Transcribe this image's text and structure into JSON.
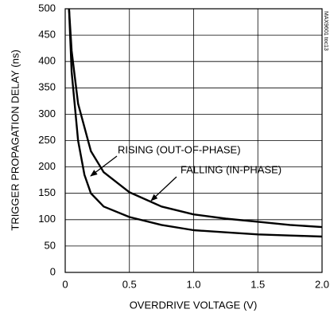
{
  "chart_data": {
    "type": "line",
    "x_label": "OVERDRIVE VOLTAGE (V)",
    "y_label": "TRIGGER PROPAGATION DELAY (ns)",
    "annotation": "MAX9601 toc13",
    "series": [
      {
        "name": "RISING (OUT-OF-PHASE)",
        "color": "#000000",
        "x": [
          0.03,
          0.05,
          0.1,
          0.15,
          0.2,
          0.3,
          0.5,
          0.75,
          1.0,
          1.25,
          1.5,
          1.75,
          2.0
        ],
        "values": [
          500,
          380,
          250,
          185,
          150,
          125,
          105,
          90,
          80,
          76,
          72,
          70,
          68
        ]
      },
      {
        "name": "FALLING (IN-PHASE)",
        "color": "#000000",
        "x": [
          0.03,
          0.05,
          0.1,
          0.2,
          0.3,
          0.5,
          0.75,
          1.0,
          1.25,
          1.5,
          1.75,
          2.0
        ],
        "values": [
          500,
          420,
          320,
          230,
          190,
          152,
          125,
          110,
          102,
          96,
          90,
          86
        ]
      }
    ],
    "xlim": [
      0,
      2.0
    ],
    "xticks": [
      0,
      0.5,
      {
        "value": 1.0,
        "label": "1.0"
      },
      1.5,
      {
        "value": 2.0,
        "label": "2.0"
      }
    ],
    "ylim": [
      0,
      500
    ],
    "yticks": [
      0,
      50,
      100,
      150,
      200,
      250,
      300,
      350,
      400,
      450,
      500
    ],
    "grid": true
  }
}
